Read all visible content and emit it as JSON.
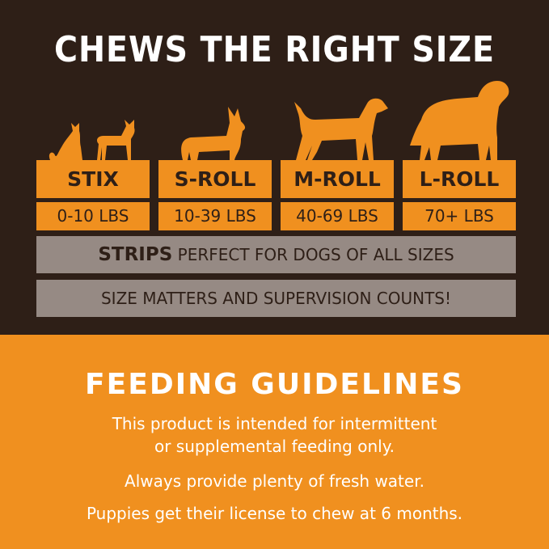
{
  "header": {
    "title": "CHEWS THE RIGHT SIZE"
  },
  "sizes": [
    {
      "name": "STIX",
      "range": "0-10 LBS",
      "icon": "cat-and-small-dog-silhouette-icon"
    },
    {
      "name": "S-ROLL",
      "range": "10-39 LBS",
      "icon": "corgi-silhouette-icon"
    },
    {
      "name": "M-ROLL",
      "range": "40-69 LBS",
      "icon": "medium-dog-silhouette-icon"
    },
    {
      "name": "L-ROLL",
      "range": "70+ LBS",
      "icon": "large-dog-silhouette-icon"
    }
  ],
  "strips": {
    "bold": "STRIPS",
    "text": "PERFECT FOR DOGS OF ALL SIZES"
  },
  "notice": "SIZE MATTERS AND SUPERVISION COUNTS!",
  "feeding": {
    "title": "FEEDING GUIDELINES",
    "lines": [
      "This product is intended for intermittent",
      "or supplemental feeding only.",
      "Always provide plenty of fresh water.",
      "Puppies get their license to chew at 6 months."
    ]
  },
  "colors": {
    "dark_brown": "#2e1f17",
    "orange": "#f0901f",
    "gray": "#968a84",
    "white": "#ffffff"
  }
}
